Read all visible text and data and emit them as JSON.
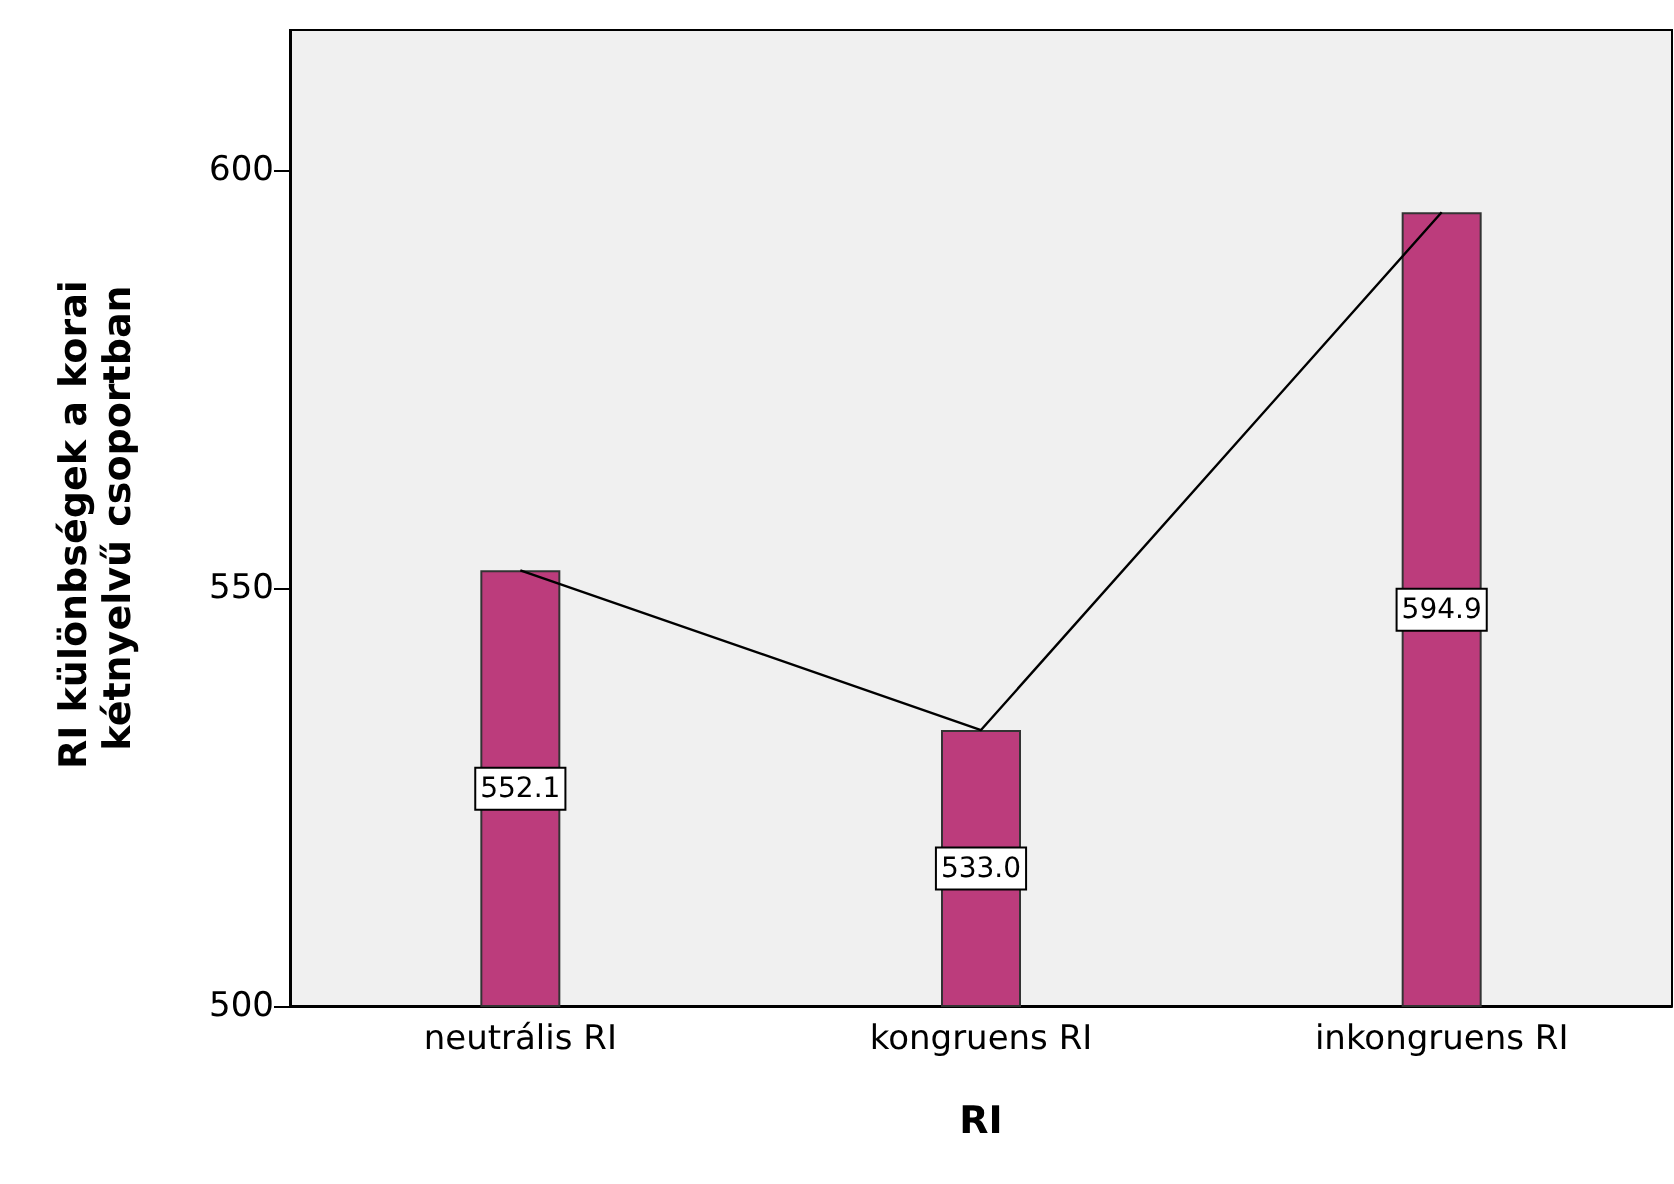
{
  "chart_data": {
    "type": "bar",
    "xlabel": "RI",
    "ylabel": "RI különbségek a korai kétnyelvű csoportban",
    "categories": [
      "neutrális RI",
      "kongruens RI",
      "inkongruens RI"
    ],
    "series": [
      {
        "color": "#bc3c7c",
        "values": [
          552.1,
          533.0,
          594.9
        ],
        "value_labels": [
          "552.1",
          "533.0",
          "594.9"
        ]
      },
      {
        "type": "line",
        "color": "#000000",
        "values": [
          552.1,
          533.0,
          594.9
        ]
      }
    ],
    "ylim": [
      500,
      616.7
    ],
    "yticks": [
      500,
      550,
      600
    ],
    "grid": false,
    "marker": "none",
    "line_style": "solid"
  }
}
